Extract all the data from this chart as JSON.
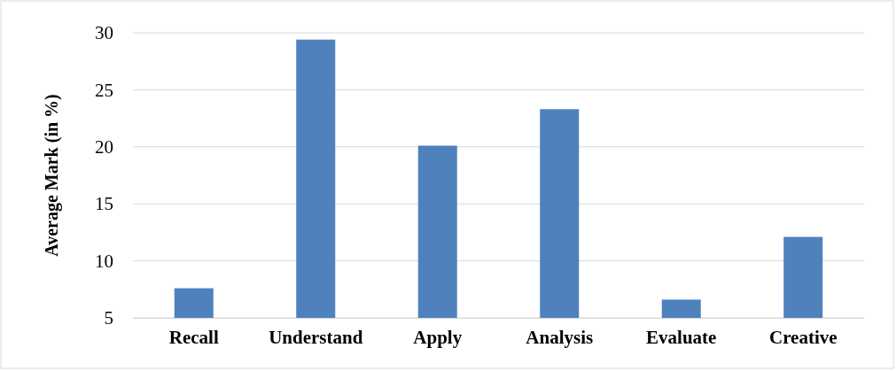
{
  "chart_data": {
    "type": "bar",
    "ylabel": "Average Mark (in %)",
    "categories": [
      "Recall",
      "Understand",
      "Apply",
      "Analysis",
      "Evaluate",
      "Creative"
    ],
    "values": [
      7.6,
      29.4,
      20.1,
      23.3,
      6.6,
      12.1
    ],
    "color": "#4f81bd",
    "ylim": [
      5,
      30
    ],
    "yticks": [
      5,
      10,
      15,
      20,
      25,
      30
    ],
    "grid": "y"
  }
}
